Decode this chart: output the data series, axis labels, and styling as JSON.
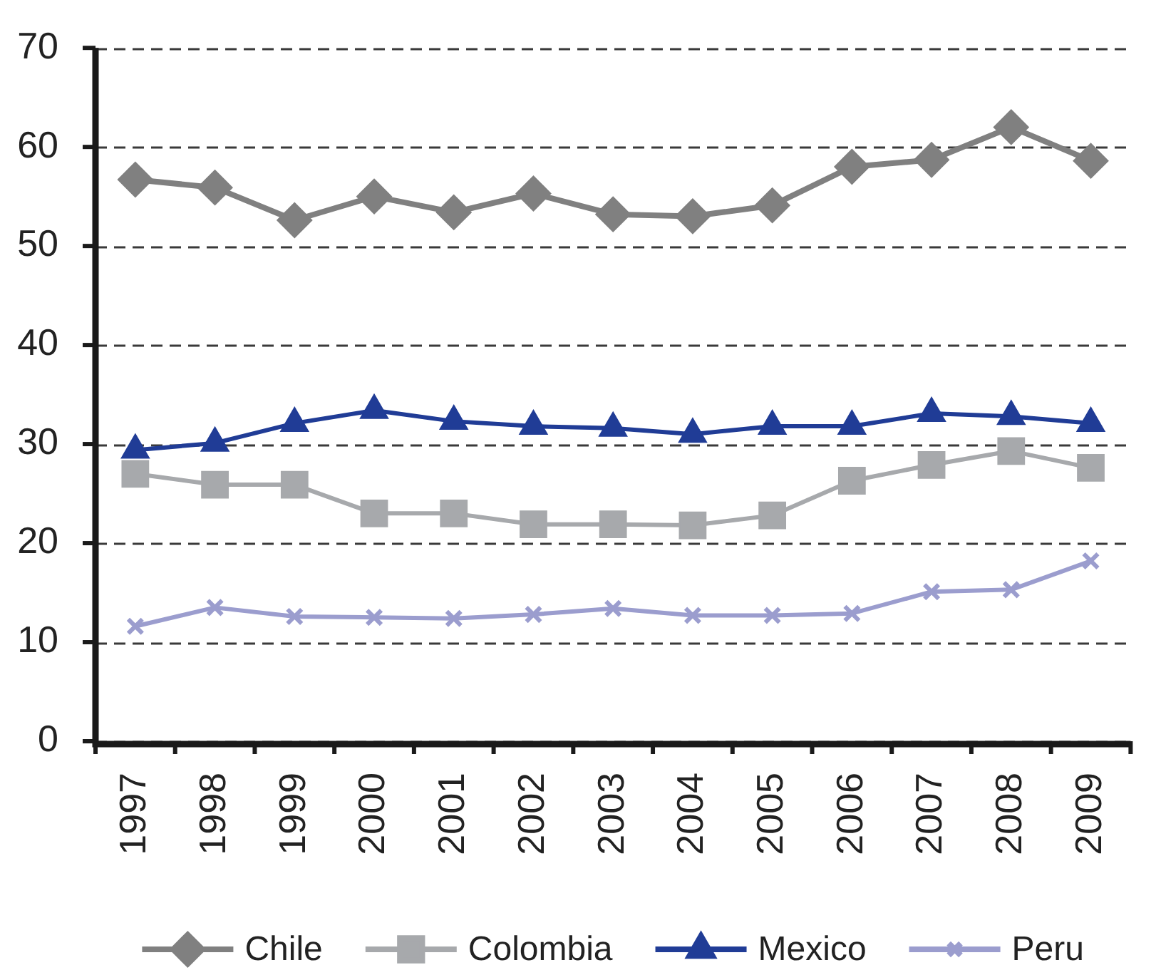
{
  "chart_data": {
    "type": "line",
    "categories": [
      "1997",
      "1998",
      "1999",
      "2000",
      "2001",
      "2002",
      "2003",
      "2004",
      "2005",
      "2006",
      "2007",
      "2008",
      "2009"
    ],
    "series": [
      {
        "name": "Chile",
        "color": "#808080",
        "marker": "diamond",
        "values": [
          56.7,
          55.9,
          52.6,
          55.0,
          53.4,
          55.3,
          53.2,
          53.0,
          54.1,
          58.0,
          58.7,
          62.0,
          58.6
        ]
      },
      {
        "name": "Colombia",
        "color": "#a7a9ac",
        "marker": "square",
        "values": [
          27.0,
          25.9,
          25.9,
          23.0,
          23.0,
          21.9,
          21.9,
          21.8,
          22.8,
          26.3,
          27.9,
          29.3,
          27.6
        ]
      },
      {
        "name": "Mexico",
        "color": "#203c96",
        "marker": "triangle",
        "values": [
          29.4,
          30.1,
          32.1,
          33.4,
          32.3,
          31.8,
          31.6,
          31.0,
          31.8,
          31.8,
          33.1,
          32.8,
          32.1
        ]
      },
      {
        "name": "Peru",
        "color": "#9b9dce",
        "marker": "cross",
        "values": [
          11.6,
          13.5,
          12.6,
          12.5,
          12.4,
          12.8,
          13.4,
          12.7,
          12.7,
          12.9,
          15.1,
          15.3,
          18.2
        ]
      }
    ],
    "ylim": [
      0,
      70
    ],
    "yticks": [
      0,
      10,
      20,
      30,
      40,
      50,
      60,
      70
    ],
    "grid": "y",
    "legend": "bottom"
  }
}
